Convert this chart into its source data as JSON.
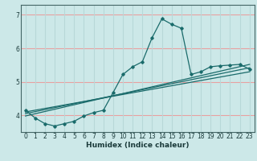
{
  "xlabel": "Humidex (Indice chaleur)",
  "ylabel": "",
  "xlim": [
    -0.5,
    23.5
  ],
  "ylim": [
    3.5,
    7.3
  ],
  "yticks": [
    4,
    5,
    6,
    7
  ],
  "xticks": [
    0,
    1,
    2,
    3,
    4,
    5,
    6,
    7,
    8,
    9,
    10,
    11,
    12,
    13,
    14,
    15,
    16,
    17,
    18,
    19,
    20,
    21,
    22,
    23
  ],
  "bg_color": "#cce8e8",
  "line_color": "#1a6b6b",
  "grid_color_h": "#e8a0a0",
  "grid_color_v": "#b8d8d8",
  "line1_x": [
    0,
    1,
    2,
    3,
    4,
    5,
    6,
    7,
    8,
    9,
    10,
    11,
    12,
    13,
    14,
    15,
    16,
    17,
    18,
    19,
    20,
    21,
    22,
    23
  ],
  "line1_y": [
    4.15,
    3.92,
    3.75,
    3.68,
    3.75,
    3.82,
    3.98,
    4.08,
    4.15,
    4.68,
    5.22,
    5.45,
    5.6,
    6.32,
    6.88,
    6.72,
    6.6,
    5.22,
    5.3,
    5.45,
    5.48,
    5.5,
    5.52,
    5.38
  ],
  "line2_x": [
    0,
    23
  ],
  "line2_y": [
    4.1,
    5.3
  ],
  "line3_x": [
    0,
    23
  ],
  "line3_y": [
    4.05,
    5.42
  ],
  "line4_x": [
    0,
    23
  ],
  "line4_y": [
    3.98,
    5.52
  ]
}
